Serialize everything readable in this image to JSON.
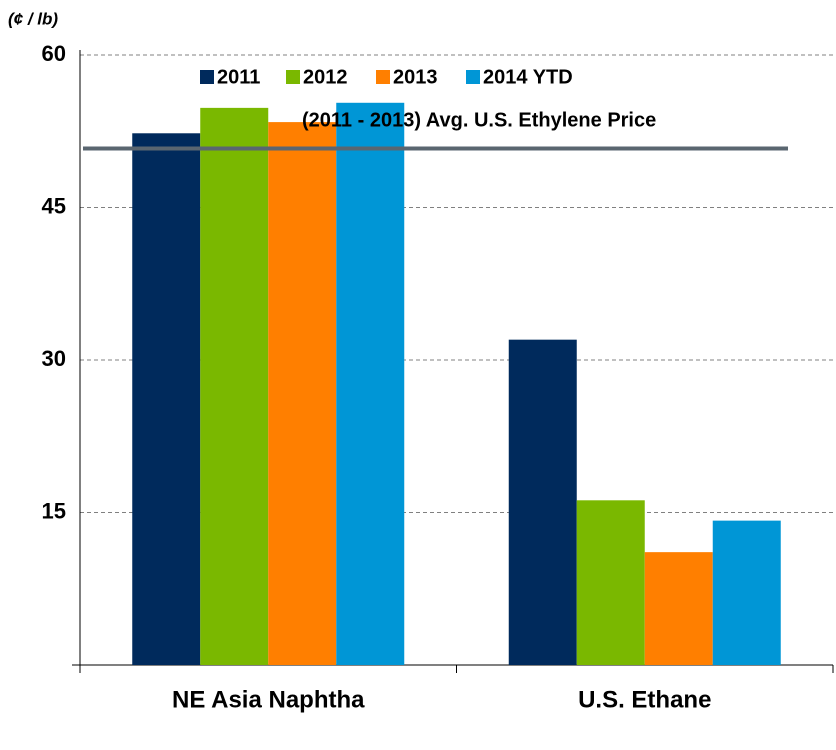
{
  "chart_data": {
    "type": "bar",
    "unit_label": "(¢ / lb)",
    "categories": [
      "NE Asia Naphtha",
      "U.S. Ethane"
    ],
    "series": [
      {
        "name": "2011",
        "color": "#002a5c",
        "values": [
          52.3,
          32
        ]
      },
      {
        "name": "2012",
        "color": "#7ab800",
        "values": [
          54.8,
          16.2
        ]
      },
      {
        "name": "2013",
        "color": "#ff7f00",
        "values": [
          53.4,
          11.1
        ]
      },
      {
        "name": "2014 YTD",
        "color": "#0096d6",
        "values": [
          55.3,
          14.2
        ]
      }
    ],
    "reference_line": {
      "label": "(2011 - 2013) Avg. U.S. Ethylene Price",
      "value": 50.8,
      "color": "#5a6670"
    },
    "ylim": [
      0,
      60
    ],
    "yticks": [
      15,
      30,
      45,
      60
    ],
    "grid": true,
    "legend": "top"
  }
}
